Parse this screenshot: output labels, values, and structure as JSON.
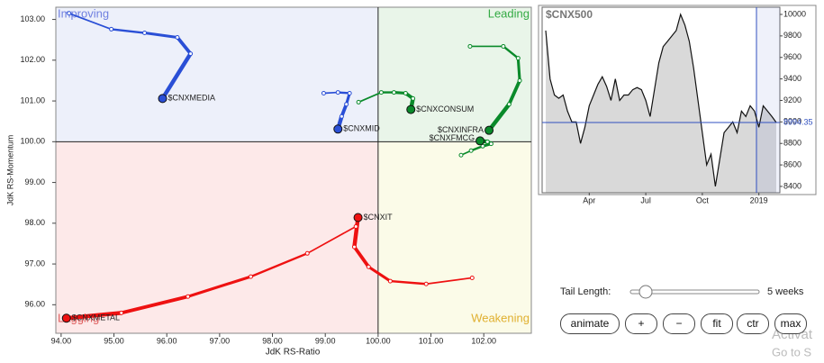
{
  "chart_data": [
    {
      "type": "rrg",
      "x_label": "JdK RS-Ratio",
      "y_label": "JdK RS-Momentum",
      "xlim": [
        93.9,
        102.9
      ],
      "ylim": [
        95.3,
        103.3
      ],
      "xticks": [
        {
          "value": 94,
          "label": "94.00"
        },
        {
          "value": 95,
          "label": "95.00"
        },
        {
          "value": 96,
          "label": "96.00"
        },
        {
          "value": 97,
          "label": "97.00"
        },
        {
          "value": 98,
          "label": "98.00"
        },
        {
          "value": 99,
          "label": "99.00"
        },
        {
          "value": 100,
          "label": "100.00"
        },
        {
          "value": 101,
          "label": "101.00"
        },
        {
          "value": 102,
          "label": "102.00"
        }
      ],
      "yticks": [
        {
          "value": 96,
          "label": "96.00"
        },
        {
          "value": 97,
          "label": "97.00"
        },
        {
          "value": 98,
          "label": "98.00"
        },
        {
          "value": 99,
          "label": "99.00"
        },
        {
          "value": 100,
          "label": "100.00"
        },
        {
          "value": 101,
          "label": "101.00"
        },
        {
          "value": 102,
          "label": "102.00"
        },
        {
          "value": 103,
          "label": "103.00"
        }
      ],
      "center": {
        "x": 100,
        "y": 100
      },
      "quadrants": {
        "improving": "Improving",
        "leading": "Leading",
        "weakening": "Weakening",
        "lagging": "Lagging"
      },
      "series": [
        {
          "name": "$CNXMEDIA",
          "color": "#2a4fd6",
          "x": [
            94.15,
            94.95,
            95.58,
            96.2,
            96.45,
            95.92
          ],
          "y": [
            103.15,
            102.76,
            102.67,
            102.56,
            102.16,
            101.06
          ]
        },
        {
          "name": "$CNXMID",
          "color": "#2a4fd6",
          "x": [
            98.97,
            99.24,
            99.46,
            99.4,
            99.31,
            99.24
          ],
          "y": [
            101.19,
            101.21,
            101.19,
            100.92,
            100.62,
            100.31
          ]
        },
        {
          "name": "$CNXCONSUM",
          "color": "#0a8a2a",
          "x": [
            99.63,
            100.06,
            100.3,
            100.52,
            100.66,
            100.62
          ],
          "y": [
            100.97,
            101.21,
            101.21,
            101.19,
            101.06,
            100.79
          ]
        },
        {
          "name": "$CNXINFRA",
          "color": "#0a8a2a",
          "x": [
            101.74,
            102.37,
            102.65,
            102.68,
            102.48,
            102.1
          ],
          "y": [
            102.34,
            102.34,
            102.05,
            101.5,
            100.92,
            100.28
          ]
        },
        {
          "name": "$CNXFMCG",
          "color": "#0a8a2a",
          "x": [
            101.57,
            101.76,
            101.98,
            102.14,
            102.07,
            101.93
          ],
          "y": [
            99.67,
            99.78,
            99.89,
            99.95,
            100.0,
            100.02
          ]
        },
        {
          "name": "$CNXIT",
          "color": "#ee1111",
          "x": [
            101.78,
            100.91,
            100.23,
            99.82,
            99.55,
            99.62
          ],
          "y": [
            96.66,
            96.51,
            96.58,
            96.93,
            97.42,
            98.14
          ]
        },
        {
          "name": "$CNXMETAL",
          "color": "#ee1111",
          "x": [
            99.58,
            98.66,
            97.59,
            96.4,
            95.14,
            94.1
          ],
          "y": [
            97.92,
            97.26,
            96.69,
            96.2,
            95.8,
            95.67
          ]
        }
      ]
    },
    {
      "type": "line",
      "title": "$CNX500",
      "color": "#111111",
      "categories": [
        null,
        null,
        null,
        null,
        null,
        null,
        null,
        null,
        null,
        null,
        "Apr",
        null,
        null,
        null,
        null,
        null,
        null,
        null,
        null,
        null,
        null,
        null,
        null,
        "Jul",
        null,
        null,
        null,
        null,
        null,
        null,
        null,
        null,
        null,
        null,
        null,
        null,
        "Oct",
        null,
        null,
        null,
        null,
        null,
        null,
        null,
        null,
        null,
        null,
        null,
        null,
        "2019",
        null,
        null,
        null,
        null
      ],
      "values": [
        9850,
        9400,
        9250,
        9220,
        9250,
        9100,
        9000,
        9000,
        8800,
        8950,
        9150,
        9250,
        9350,
        9420,
        9330,
        9200,
        9400,
        9200,
        9250,
        9250,
        9300,
        9320,
        9300,
        9200,
        9050,
        9300,
        9550,
        9700,
        9750,
        9800,
        9850,
        10000,
        9900,
        9750,
        9500,
        9200,
        8900,
        8600,
        8700,
        8400,
        8650,
        8900,
        8950,
        9000,
        8900,
        9100,
        9050,
        9150,
        9100,
        8950,
        9150,
        9100,
        9050,
        8994.35
      ],
      "ylim": [
        8341,
        10067
      ],
      "yticks": [
        8400,
        8600,
        8800,
        9000,
        9200,
        9400,
        9600,
        9800,
        10000
      ]
    }
  ],
  "controls": {
    "tail_label": "Tail Length:",
    "tail_value": "5 weeks",
    "buttons": [
      "animate",
      "+",
      "−",
      "fit",
      "ctr",
      "max"
    ]
  },
  "overlay": {
    "line1": "Activat",
    "line2": "Go to S"
  }
}
